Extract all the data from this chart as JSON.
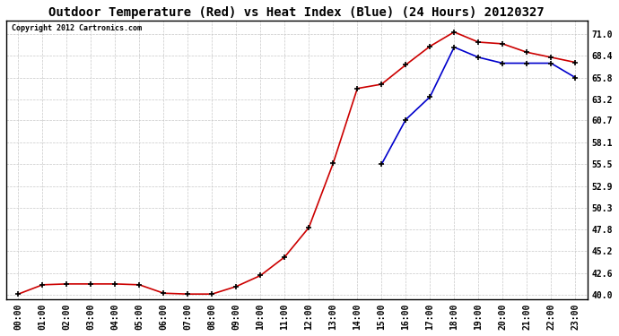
{
  "title": "Outdoor Temperature (Red) vs Heat Index (Blue) (24 Hours) 20120327",
  "copyright": "Copyright 2012 Cartronics.com",
  "x_labels": [
    "00:00",
    "01:00",
    "02:00",
    "03:00",
    "04:00",
    "05:00",
    "06:00",
    "07:00",
    "08:00",
    "09:00",
    "10:00",
    "11:00",
    "12:00",
    "13:00",
    "14:00",
    "15:00",
    "16:00",
    "17:00",
    "18:00",
    "19:00",
    "20:00",
    "21:00",
    "22:00",
    "23:00"
  ],
  "red_data": [
    40.1,
    41.2,
    41.3,
    41.3,
    41.3,
    41.2,
    40.2,
    40.1,
    40.1,
    41.0,
    42.3,
    44.5,
    48.0,
    55.6,
    64.5,
    65.0,
    67.3,
    69.5,
    71.2,
    70.0,
    69.8,
    68.8,
    68.2,
    67.6
  ],
  "blue_data": [
    null,
    null,
    null,
    null,
    null,
    null,
    null,
    null,
    null,
    null,
    null,
    null,
    null,
    null,
    null,
    55.5,
    60.8,
    63.5,
    69.4,
    68.2,
    67.5,
    67.5,
    67.5,
    65.8
  ],
  "yticks": [
    40.0,
    42.6,
    45.2,
    47.8,
    50.3,
    52.9,
    55.5,
    58.1,
    60.7,
    63.2,
    65.8,
    68.4,
    71.0
  ],
  "ylim": [
    39.5,
    72.5
  ],
  "bg_color": "#ffffff",
  "plot_bg_color": "#ffffff",
  "grid_color": "#c8c8c8",
  "red_color": "#cc0000",
  "blue_color": "#0000cc",
  "marker_color": "#000000",
  "title_fontsize": 10,
  "tick_fontsize": 7,
  "copyright_fontsize": 6
}
